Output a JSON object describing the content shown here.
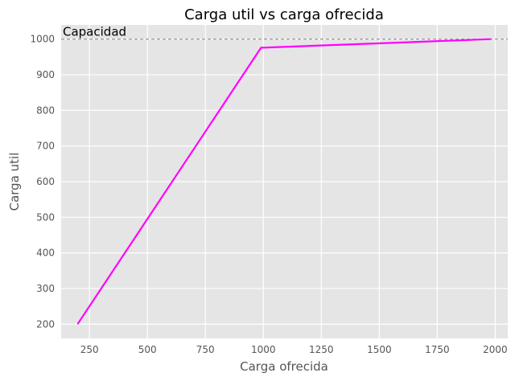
{
  "chart_data": {
    "type": "line",
    "title": "Carga util vs carga ofrecida",
    "xlabel": "Carga ofrecida",
    "ylabel": "Carga util",
    "xlim": [
      128,
      2054
    ],
    "ylim": [
      160,
      1040
    ],
    "xticks": [
      250,
      500,
      750,
      1000,
      1250,
      1500,
      1750,
      2000
    ],
    "yticks": [
      200,
      300,
      400,
      500,
      600,
      700,
      800,
      900,
      1000
    ],
    "grid": true,
    "series": [
      {
        "x": [
          200,
          990,
          1980
        ],
        "y": [
          201,
          976,
          1000
        ],
        "color": "#ff00ff"
      }
    ],
    "reference_line": {
      "y": 1000,
      "label": "Capacidad",
      "color": "#808080",
      "style": "dashed"
    }
  },
  "colors": {
    "plot_background": "#e5e5e5",
    "grid": "#ffffff",
    "text_muted": "#555555"
  }
}
